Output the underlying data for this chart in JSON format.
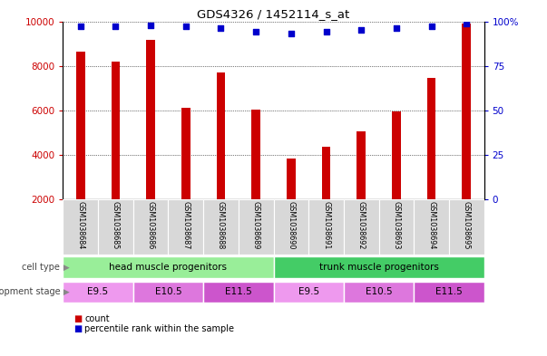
{
  "title": "GDS4326 / 1452114_s_at",
  "samples": [
    "GSM1038684",
    "GSM1038685",
    "GSM1038686",
    "GSM1038687",
    "GSM1038688",
    "GSM1038689",
    "GSM1038690",
    "GSM1038691",
    "GSM1038692",
    "GSM1038693",
    "GSM1038694",
    "GSM1038695"
  ],
  "counts": [
    8650,
    8200,
    9150,
    6100,
    7700,
    6020,
    3850,
    4350,
    5050,
    5950,
    7450,
    9900
  ],
  "percentile_ranks": [
    97,
    97,
    98,
    97,
    96,
    94,
    93,
    94,
    95,
    96,
    97,
    99
  ],
  "bar_color": "#cc0000",
  "dot_color": "#0000cc",
  "ylim_left": [
    2000,
    10000
  ],
  "ylim_right": [
    0,
    100
  ],
  "yticks_left": [
    2000,
    4000,
    6000,
    8000,
    10000
  ],
  "yticks_right": [
    0,
    25,
    50,
    75,
    100
  ],
  "yticklabels_right": [
    "0",
    "25",
    "50",
    "75",
    "100%"
  ],
  "cell_type_groups": [
    {
      "label": "head muscle progenitors",
      "start": 0,
      "end": 6,
      "color": "#99ee99"
    },
    {
      "label": "trunk muscle progenitors",
      "start": 6,
      "end": 12,
      "color": "#44cc66"
    }
  ],
  "dev_stage_groups": [
    {
      "label": "E9.5",
      "start": 0,
      "end": 2,
      "color": "#ee99ee"
    },
    {
      "label": "E10.5",
      "start": 2,
      "end": 4,
      "color": "#dd77dd"
    },
    {
      "label": "E11.5",
      "start": 4,
      "end": 6,
      "color": "#cc55cc"
    },
    {
      "label": "E9.5",
      "start": 6,
      "end": 8,
      "color": "#ee99ee"
    },
    {
      "label": "E10.5",
      "start": 8,
      "end": 10,
      "color": "#dd77dd"
    },
    {
      "label": "E11.5",
      "start": 10,
      "end": 12,
      "color": "#cc55cc"
    }
  ],
  "row_labels": [
    "cell type",
    "development stage"
  ],
  "legend_count_color": "#cc0000",
  "legend_dot_color": "#0000cc",
  "background_color": "#ffffff",
  "tick_color_left": "#cc0000",
  "tick_color_right": "#0000cc",
  "grid_color": "#000000",
  "bar_width": 0.25
}
